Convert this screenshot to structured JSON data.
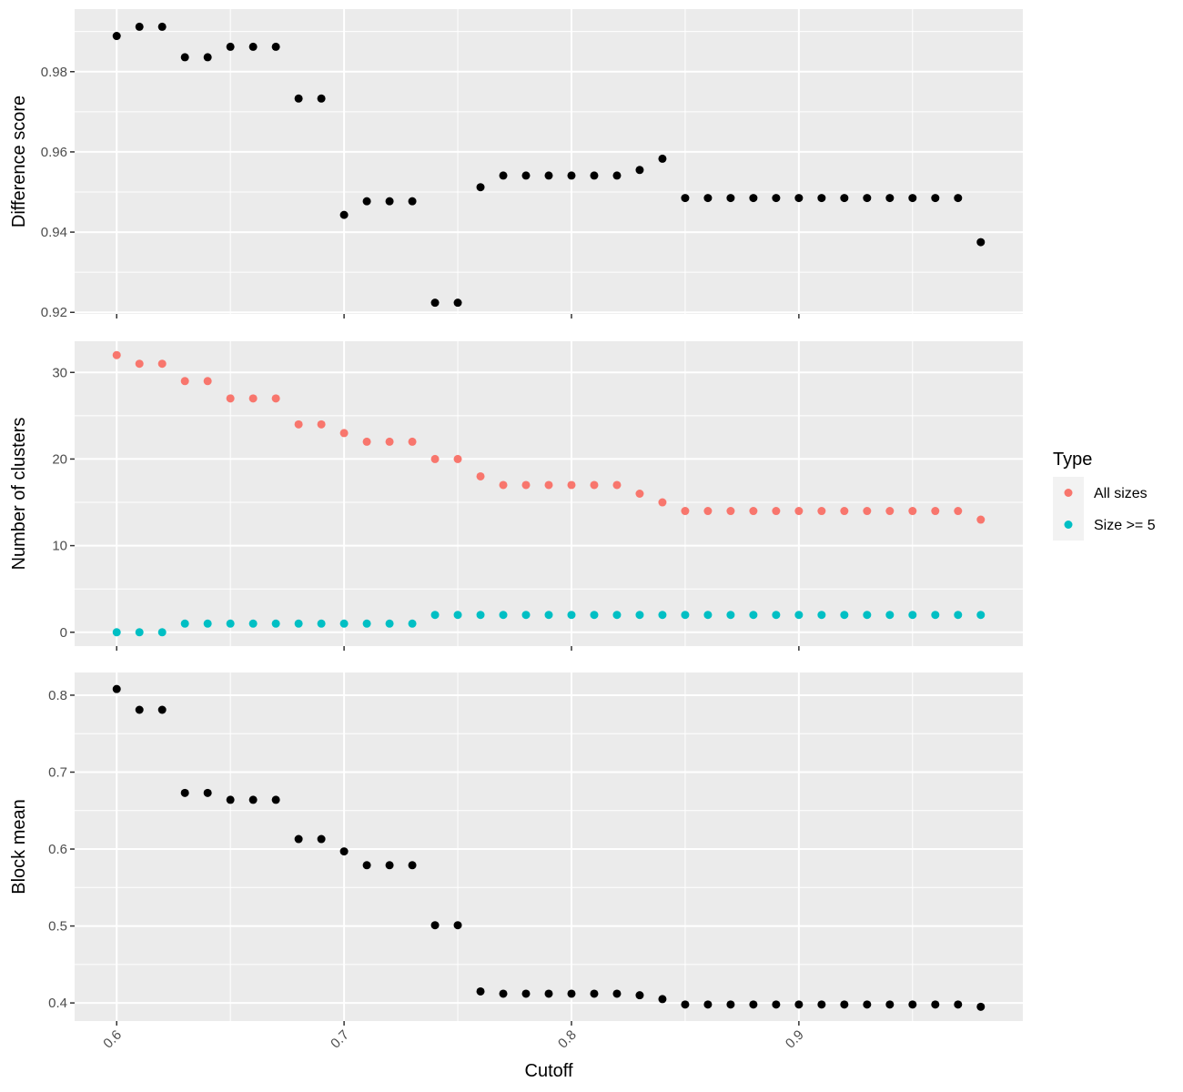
{
  "chart_data": [
    {
      "type": "scatter",
      "ylabel": "Difference score",
      "xlim": [
        0.5815,
        0.9985
      ],
      "ylim": [
        0.9196,
        0.9956
      ],
      "yticks": [
        0.92,
        0.94,
        0.96,
        0.98
      ],
      "ytick_labels": [
        "0.92",
        "0.94",
        "0.96",
        "0.98"
      ],
      "grid": true,
      "series": [
        {
          "color": "#000000",
          "x": [
            0.6,
            0.61,
            0.62,
            0.63,
            0.64,
            0.65,
            0.66,
            0.67,
            0.68,
            0.69,
            0.7,
            0.71,
            0.72,
            0.73,
            0.74,
            0.75,
            0.76,
            0.77,
            0.78,
            0.79,
            0.8,
            0.81,
            0.82,
            0.83,
            0.84,
            0.85,
            0.86,
            0.87,
            0.88,
            0.89,
            0.9,
            0.91,
            0.92,
            0.93,
            0.94,
            0.95,
            0.96,
            0.97,
            0.98
          ],
          "y": [
            0.9889,
            0.9912,
            0.9912,
            0.9836,
            0.9836,
            0.9862,
            0.9862,
            0.9862,
            0.9733,
            0.9733,
            0.9443,
            0.9477,
            0.9477,
            0.9477,
            0.9224,
            0.9224,
            0.9512,
            0.9541,
            0.9541,
            0.9541,
            0.9541,
            0.9541,
            0.9541,
            0.9555,
            0.9583,
            0.9485,
            0.9485,
            0.9485,
            0.9485,
            0.9485,
            0.9485,
            0.9485,
            0.9485,
            0.9485,
            0.9485,
            0.9485,
            0.9485,
            0.9485,
            0.9375
          ]
        }
      ]
    },
    {
      "type": "scatter",
      "ylabel": "Number of clusters",
      "xlim": [
        0.5815,
        0.9985
      ],
      "ylim": [
        -1.6,
        33.6
      ],
      "yticks": [
        0,
        10,
        20,
        30
      ],
      "ytick_labels": [
        "0",
        "10",
        "20",
        "30"
      ],
      "grid": true,
      "legend": {
        "title": "Type",
        "position": "right",
        "entries": [
          {
            "label": "All sizes",
            "color": "#F8766D"
          },
          {
            "label": "Size >= 5",
            "color": "#00BFC4"
          }
        ]
      },
      "series": [
        {
          "name": "All sizes",
          "color": "#F8766D",
          "x": [
            0.6,
            0.61,
            0.62,
            0.63,
            0.64,
            0.65,
            0.66,
            0.67,
            0.68,
            0.69,
            0.7,
            0.71,
            0.72,
            0.73,
            0.74,
            0.75,
            0.76,
            0.77,
            0.78,
            0.79,
            0.8,
            0.81,
            0.82,
            0.83,
            0.84,
            0.85,
            0.86,
            0.87,
            0.88,
            0.89,
            0.9,
            0.91,
            0.92,
            0.93,
            0.94,
            0.95,
            0.96,
            0.97,
            0.98
          ],
          "y": [
            32,
            31,
            31,
            29,
            29,
            27,
            27,
            27,
            24,
            24,
            23,
            22,
            22,
            22,
            20,
            20,
            18,
            17,
            17,
            17,
            17,
            17,
            17,
            16,
            15,
            14,
            14,
            14,
            14,
            14,
            14,
            14,
            14,
            14,
            14,
            14,
            14,
            14,
            13
          ]
        },
        {
          "name": "Size >= 5",
          "color": "#00BFC4",
          "x": [
            0.6,
            0.61,
            0.62,
            0.63,
            0.64,
            0.65,
            0.66,
            0.67,
            0.68,
            0.69,
            0.7,
            0.71,
            0.72,
            0.73,
            0.74,
            0.75,
            0.76,
            0.77,
            0.78,
            0.79,
            0.8,
            0.81,
            0.82,
            0.83,
            0.84,
            0.85,
            0.86,
            0.87,
            0.88,
            0.89,
            0.9,
            0.91,
            0.92,
            0.93,
            0.94,
            0.95,
            0.96,
            0.97,
            0.98
          ],
          "y": [
            0,
            0,
            0,
            1,
            1,
            1,
            1,
            1,
            1,
            1,
            1,
            1,
            1,
            1,
            2,
            2,
            2,
            2,
            2,
            2,
            2,
            2,
            2,
            2,
            2,
            2,
            2,
            2,
            2,
            2,
            2,
            2,
            2,
            2,
            2,
            2,
            2,
            2,
            2
          ]
        }
      ]
    },
    {
      "type": "scatter",
      "ylabel": "Block mean",
      "xlabel": "Cutoff",
      "xlim": [
        0.5815,
        0.9985
      ],
      "ylim": [
        0.3765,
        0.8295
      ],
      "xticks": [
        0.6,
        0.7,
        0.8,
        0.9
      ],
      "xtick_labels": [
        "0.6",
        "0.7",
        "0.8",
        "0.9"
      ],
      "yticks": [
        0.4,
        0.5,
        0.6,
        0.7,
        0.8
      ],
      "ytick_labels": [
        "0.4",
        "0.5",
        "0.6",
        "0.7",
        "0.8"
      ],
      "grid": true,
      "series": [
        {
          "color": "#000000",
          "x": [
            0.6,
            0.61,
            0.62,
            0.63,
            0.64,
            0.65,
            0.66,
            0.67,
            0.68,
            0.69,
            0.7,
            0.71,
            0.72,
            0.73,
            0.74,
            0.75,
            0.76,
            0.77,
            0.78,
            0.79,
            0.8,
            0.81,
            0.82,
            0.83,
            0.84,
            0.85,
            0.86,
            0.87,
            0.88,
            0.89,
            0.9,
            0.91,
            0.92,
            0.93,
            0.94,
            0.95,
            0.96,
            0.97,
            0.98
          ],
          "y": [
            0.808,
            0.781,
            0.781,
            0.673,
            0.673,
            0.664,
            0.664,
            0.664,
            0.613,
            0.613,
            0.597,
            0.579,
            0.579,
            0.579,
            0.501,
            0.501,
            0.415,
            0.412,
            0.412,
            0.412,
            0.412,
            0.412,
            0.412,
            0.41,
            0.405,
            0.398,
            0.398,
            0.398,
            0.398,
            0.398,
            0.398,
            0.398,
            0.398,
            0.398,
            0.398,
            0.398,
            0.398,
            0.398,
            0.395
          ]
        }
      ]
    }
  ]
}
